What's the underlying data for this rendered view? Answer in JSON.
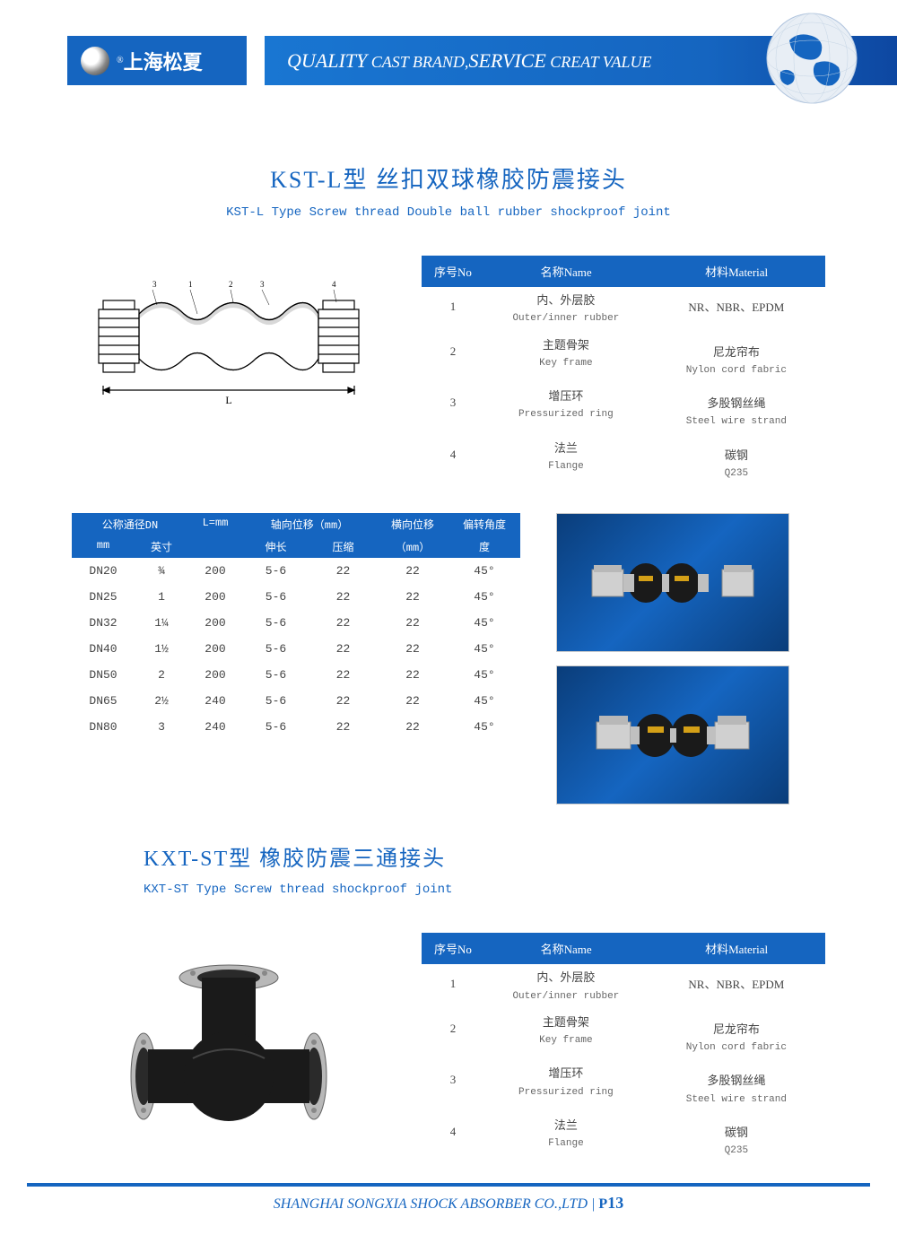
{
  "header": {
    "brand_cn": "上海松夏",
    "reg": "®",
    "slogan_parts": {
      "q": "QUALITY",
      "cb": "CAST BRAND,",
      "s": "SERVICE",
      "cv": "CREAT VALUE"
    }
  },
  "section1": {
    "title_cn": "KST-L型 丝扣双球橡胶防震接头",
    "title_en": "KST-L Type Screw thread Double ball rubber shockproof joint",
    "materials": {
      "header": {
        "no": "序号No",
        "name": "名称Name",
        "material": "材料Material"
      },
      "rows": [
        {
          "no": "1",
          "name_cn": "内、外层胶",
          "name_en": "Outer/inner rubber",
          "mat_cn": "NR、NBR、EPDM",
          "mat_en": ""
        },
        {
          "no": "2",
          "name_cn": "主题骨架",
          "name_en": "Key frame",
          "mat_cn": "尼龙帘布",
          "mat_en": "Nylon cord fabric"
        },
        {
          "no": "3",
          "name_cn": "增压环",
          "name_en": "Pressurized ring",
          "mat_cn": "多股钢丝绳",
          "mat_en": "Steel wire strand"
        },
        {
          "no": "4",
          "name_cn": "法兰",
          "name_en": "Flange",
          "mat_cn": "碳钢",
          "mat_en": "Q235"
        }
      ]
    },
    "spec": {
      "header1": {
        "c1": "公称通径DN",
        "c3": "L=mm",
        "c4": "轴向位移（mm）",
        "c6": "横向位移",
        "c7": "偏转角度"
      },
      "header2": {
        "c1": "mm",
        "c2": "英寸",
        "c4": "伸长",
        "c5": "压缩",
        "c6": "（mm）",
        "c7": "度"
      },
      "rows": [
        {
          "c1": "DN20",
          "c2": "¾",
          "c3": "200",
          "c4": "5-6",
          "c5": "22",
          "c6": "22",
          "c7": "45°"
        },
        {
          "c1": "DN25",
          "c2": "1",
          "c3": "200",
          "c4": "5-6",
          "c5": "22",
          "c6": "22",
          "c7": "45°"
        },
        {
          "c1": "DN32",
          "c2": "1¼",
          "c3": "200",
          "c4": "5-6",
          "c5": "22",
          "c6": "22",
          "c7": "45°"
        },
        {
          "c1": "DN40",
          "c2": "1½",
          "c3": "200",
          "c4": "5-6",
          "c5": "22",
          "c6": "22",
          "c7": "45°"
        },
        {
          "c1": "DN50",
          "c2": "2",
          "c3": "200",
          "c4": "5-6",
          "c5": "22",
          "c6": "22",
          "c7": "45°"
        },
        {
          "c1": "DN65",
          "c2": "2½",
          "c3": "240",
          "c4": "5-6",
          "c5": "22",
          "c6": "22",
          "c7": "45°"
        },
        {
          "c1": "DN80",
          "c2": "3",
          "c3": "240",
          "c4": "5-6",
          "c5": "22",
          "c6": "22",
          "c7": "45°"
        }
      ]
    },
    "diagram_labels": {
      "L": "L"
    }
  },
  "section2": {
    "title_cn": "KXT-ST型 橡胶防震三通接头",
    "title_en": "KXT-ST Type Screw thread shockproof joint",
    "materials": {
      "header": {
        "no": "序号No",
        "name": "名称Name",
        "material": "材料Material"
      },
      "rows": [
        {
          "no": "1",
          "name_cn": "内、外层胶",
          "name_en": "Outer/inner rubber",
          "mat_cn": "NR、NBR、EPDM",
          "mat_en": ""
        },
        {
          "no": "2",
          "name_cn": "主题骨架",
          "name_en": "Key frame",
          "mat_cn": "尼龙帘布",
          "mat_en": "Nylon cord fabric"
        },
        {
          "no": "3",
          "name_cn": "增压环",
          "name_en": "Pressurized ring",
          "mat_cn": "多股钢丝绳",
          "mat_en": "Steel wire strand"
        },
        {
          "no": "4",
          "name_cn": "法兰",
          "name_en": "Flange",
          "mat_cn": "碳钢",
          "mat_en": "Q235"
        }
      ]
    }
  },
  "footer": {
    "company": "SHANGHAI SONGXIA SHOCK ABSORBER CO.,LTD",
    "sep": " | ",
    "page_prefix": "P",
    "page_num": "13"
  },
  "colors": {
    "brand_blue": "#1565c0",
    "text_gray": "#444444"
  }
}
